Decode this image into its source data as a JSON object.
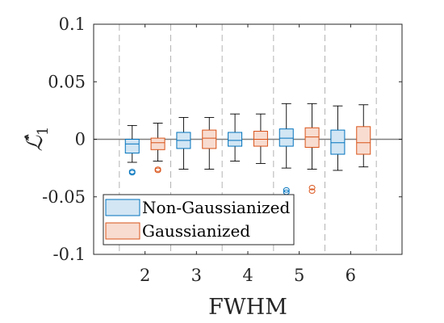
{
  "chart_data": {
    "type": "box",
    "title": "",
    "xlabel": "FWHM",
    "ylabel": "ℒ̂",
    "ylabel_subscript": "1",
    "xlim": [
      1,
      7
    ],
    "ylim": [
      -0.1,
      0.1
    ],
    "categories": [
      "2",
      "3",
      "4",
      "5",
      "6"
    ],
    "x_positions": [
      2,
      3,
      4,
      5,
      6
    ],
    "yticks": [
      -0.1,
      -0.05,
      0,
      0.05,
      0.1
    ],
    "ytick_labels": [
      "-0.1",
      "-0.05",
      "0",
      "0.05",
      "0.1"
    ],
    "separators": [
      1.5,
      2.5,
      3.5,
      4.5,
      5.5,
      6.5
    ],
    "zero_line": 0,
    "grid": false,
    "legend_position": "lower-left",
    "series": [
      {
        "name": "Non-Gaussianized",
        "color": "#0072BD",
        "fill": "#D2E6F4",
        "boxes": [
          {
            "whisker_low": -0.02,
            "q1": -0.012,
            "median": -0.004,
            "q3": 0.0,
            "whisker_high": 0.012,
            "outliers": [
              -0.028,
              -0.029
            ]
          },
          {
            "whisker_low": -0.026,
            "q1": -0.008,
            "median": -0.001,
            "q3": 0.006,
            "whisker_high": 0.019,
            "outliers": []
          },
          {
            "whisker_low": -0.019,
            "q1": -0.006,
            "median": -0.001,
            "q3": 0.006,
            "whisker_high": 0.022,
            "outliers": []
          },
          {
            "whisker_low": -0.025,
            "q1": -0.006,
            "median": 0.001,
            "q3": 0.009,
            "whisker_high": 0.031,
            "outliers": [
              -0.044,
              -0.046
            ]
          },
          {
            "whisker_low": -0.027,
            "q1": -0.013,
            "median": -0.003,
            "q3": 0.008,
            "whisker_high": 0.029,
            "outliers": []
          }
        ]
      },
      {
        "name": "Gaussianized",
        "color": "#D95319",
        "fill": "#F8DCD0",
        "boxes": [
          {
            "whisker_low": -0.019,
            "q1": -0.009,
            "median": -0.003,
            "q3": 0.001,
            "whisker_high": 0.014,
            "outliers": [
              -0.026,
              -0.027
            ]
          },
          {
            "whisker_low": -0.026,
            "q1": -0.008,
            "median": 0.001,
            "q3": 0.008,
            "whisker_high": 0.019,
            "outliers": []
          },
          {
            "whisker_low": -0.021,
            "q1": -0.006,
            "median": 0.0,
            "q3": 0.007,
            "whisker_high": 0.022,
            "outliers": []
          },
          {
            "whisker_low": -0.026,
            "q1": -0.007,
            "median": 0.002,
            "q3": 0.01,
            "whisker_high": 0.031,
            "outliers": [
              -0.042,
              -0.045
            ]
          },
          {
            "whisker_low": -0.024,
            "q1": -0.013,
            "median": -0.003,
            "q3": 0.011,
            "whisker_high": 0.03,
            "outliers": []
          }
        ]
      }
    ]
  }
}
